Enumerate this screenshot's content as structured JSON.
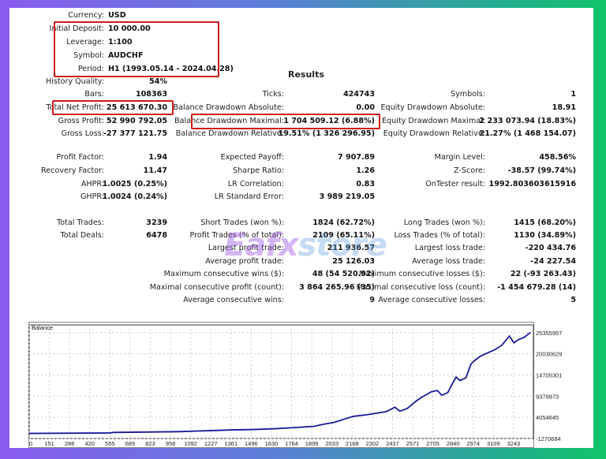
{
  "report": {
    "results_heading": "Results",
    "watermark": {
      "text_a": "Eafx",
      "text_b": "store"
    },
    "rows": [
      [
        {
          "label": "Currency:",
          "value": "USD"
        }
      ],
      [
        {
          "label": "Initial Deposit:",
          "value": "10 000.00"
        }
      ],
      [
        {
          "label": "Leverage:",
          "value": "1:100"
        }
      ],
      [
        {
          "label": "Symbol:",
          "value": "AUDCHF"
        }
      ],
      [
        {
          "label": "Period:",
          "value": "H1 (1993.05.14 - 2024.04.28)"
        }
      ],
      [
        {
          "label": "History Quality:",
          "value": "54%"
        }
      ],
      [
        {
          "label": "Bars:",
          "value": "108363"
        },
        {
          "label": "Ticks:",
          "value": "424743"
        },
        {
          "label": "Symbols:",
          "value": "1"
        }
      ],
      [
        {
          "label": "Total Net Profit:",
          "value": "25 613 670.30"
        },
        {
          "label": "Balance Drawdown Absolute:",
          "value": "0.00"
        },
        {
          "label": "Equity Drawdown Absolute:",
          "value": "18.91"
        }
      ],
      [
        {
          "label": "Gross Profit:",
          "value": "52 990 792.05"
        },
        {
          "label": "Balance Drawdown Maximal:",
          "value": "1 704 509.12 (6.88%)"
        },
        {
          "label": "Equity Drawdown Maximal:",
          "value": "2 233 073.94 (18.83%)"
        }
      ],
      [
        {
          "label": "Gross Loss:",
          "value": "-27 377 121.75"
        },
        {
          "label": "Balance Drawdown Relative:",
          "value": "19.51% (1 326 296.95)"
        },
        {
          "label": "Equity Drawdown Relative:",
          "value": "21.27% (1 468 154.07)"
        }
      ],
      [
        {
          "label": "Profit Factor:",
          "value": "1.94"
        },
        {
          "label": "Expected Payoff:",
          "value": "7 907.89"
        },
        {
          "label": "Margin Level:",
          "value": "458.56%"
        }
      ],
      [
        {
          "label": "Recovery Factor:",
          "value": "11.47"
        },
        {
          "label": "Sharpe Ratio:",
          "value": "1.26"
        },
        {
          "label": "Z-Score:",
          "value": "-38.57 (99.74%)"
        }
      ],
      [
        {
          "label": "AHPR:",
          "value": "1.0025 (0.25%)"
        },
        {
          "label": "LR Correlation:",
          "value": "0.83"
        },
        {
          "label": "OnTester result:",
          "value": "1992.803603615916"
        }
      ],
      [
        {
          "label": "GHPR:",
          "value": "1.0024 (0.24%)"
        },
        {
          "label": "LR Standard Error:",
          "value": "3 989 219.05"
        }
      ],
      [
        {
          "label": "Total Trades:",
          "value": "3239"
        },
        {
          "label": "Short Trades (won %):",
          "value": "1824 (62.72%)"
        },
        {
          "label": "Long Trades (won %):",
          "value": "1415 (68.20%)"
        }
      ],
      [
        {
          "label": "Total Deals:",
          "value": "6478"
        },
        {
          "label": "Profit Trades (% of total):",
          "value": "2109 (65.11%)"
        },
        {
          "label": "Loss Trades (% of total):",
          "value": "1130 (34.89%)"
        }
      ],
      [
        null,
        {
          "label": "Largest profit trade:",
          "value": "211 936.57"
        },
        {
          "label": "Largest loss trade:",
          "value": "-220 434.76"
        }
      ],
      [
        null,
        {
          "label": "Average profit trade:",
          "value": "25 126.03"
        },
        {
          "label": "Average loss trade:",
          "value": "-24 227.54"
        }
      ],
      [
        null,
        {
          "label": "Maximum consecutive wins ($):",
          "value": "48 (54 520.92)"
        },
        {
          "label": "Maximum consecutive losses ($):",
          "value": "22 (-93 263.43)"
        }
      ],
      [
        null,
        {
          "label": "Maximal consecutive profit (count):",
          "value": "3 864 265.96 (35)"
        },
        {
          "label": "Maximal consecutive loss (count):",
          "value": "-1 454 679.28 (14)"
        }
      ],
      [
        null,
        {
          "label": "Average consecutive wins:",
          "value": "9"
        },
        {
          "label": "Average consecutive losses:",
          "value": "5"
        }
      ]
    ]
  },
  "chart_data": {
    "type": "line",
    "title": "Balance",
    "x_ticks": [
      "0",
      "151",
      "286",
      "420",
      "555",
      "689",
      "823",
      "958",
      "1092",
      "1227",
      "1361",
      "1496",
      "1630",
      "1764",
      "1899",
      "2033",
      "2168",
      "2302",
      "2437",
      "2571",
      "2705",
      "2840",
      "2974",
      "3109",
      "3243"
    ],
    "y_ticks": [
      "25355957",
      "20030629",
      "14705301",
      "9379973",
      "4054645",
      "-1270684"
    ],
    "xlim": [
      0,
      3360
    ],
    "ylim": [
      -1270684,
      27300000
    ],
    "grid": true,
    "line_color": "#1a1a9a",
    "series": [
      {
        "x": [
          0,
          540,
          560,
          900,
          1000,
          1200,
          1360,
          1500,
          1640,
          1780,
          1900,
          1960,
          2033,
          2100,
          2160,
          2250,
          2300,
          2380,
          2437,
          2470,
          2520,
          2580,
          2620,
          2680,
          2720,
          2750,
          2790,
          2820,
          2845,
          2870,
          2910,
          2945,
          2970,
          3010,
          3050,
          3100,
          3150,
          3200,
          3230,
          3260,
          3300,
          3340
        ],
        "y": [
          10000,
          120000,
          250000,
          400000,
          450000,
          700000,
          900000,
          1000000,
          1200000,
          1500000,
          1800000,
          2300000,
          2800000,
          3600000,
          4300000,
          4700000,
          5000000,
          5500000,
          6600000,
          5600000,
          6300000,
          8200000,
          9200000,
          10500000,
          10800000,
          9600000,
          10300000,
          12500000,
          14200000,
          13300000,
          14000000,
          17500000,
          18400000,
          19500000,
          20200000,
          21000000,
          22200000,
          24500000,
          22800000,
          23600000,
          24200000,
          25400000
        ]
      }
    ]
  }
}
